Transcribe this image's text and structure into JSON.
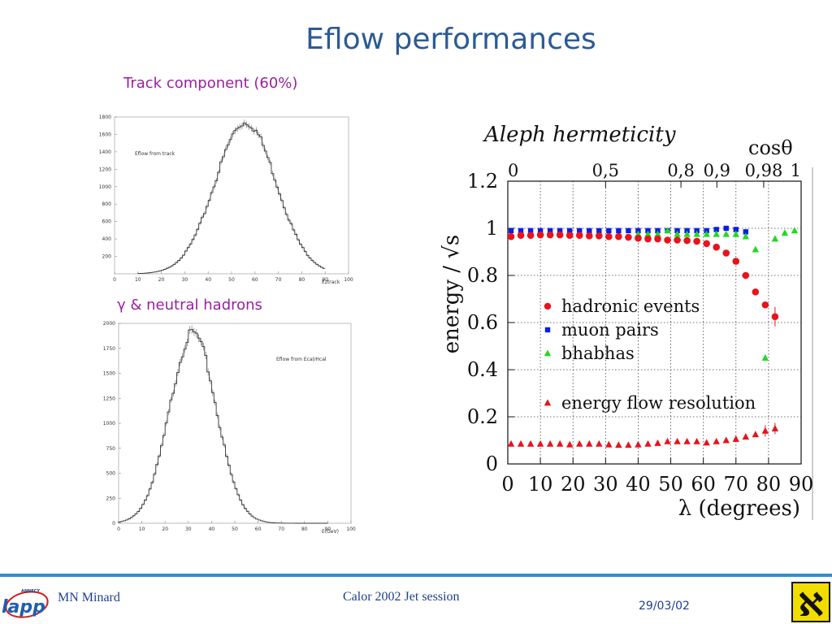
{
  "slide": {
    "title": "Eflow performances",
    "subheading_track": "Track component (60%)",
    "subheading_neutral_symbol": "γ",
    "subheading_neutral": "& neutral hadrons"
  },
  "footer": {
    "author": "MN Minard",
    "session": "Calor 2002 Jet session",
    "date": "29/03/02",
    "left_logo_text": "lapp",
    "left_logo_small": "ANNECY",
    "right_logo_glyph": "ℵ"
  },
  "colors": {
    "title": "#2c5b94",
    "subheading": "#9a1fa0",
    "footer_line": "#2f8ed0",
    "hadronic": "#e8131c",
    "muon": "#0a1ee6",
    "bhabha": "#22d822",
    "resolution": "#e8131c",
    "logo_yellow": "#f2dd00"
  },
  "chart_data": [
    {
      "type": "histogram",
      "annotation": "Eflow from track",
      "xlabel": "Eztrack",
      "xlim": [
        0,
        100
      ],
      "ylim": [
        0,
        1800
      ],
      "xticks": [
        0,
        10,
        20,
        30,
        40,
        50,
        60,
        70,
        80,
        90,
        100
      ],
      "yticks": [
        200,
        400,
        600,
        800,
        1000,
        1200,
        1400,
        1600,
        1800
      ],
      "peak_x": 56,
      "peak_value": 1740,
      "width_sigma": 13
    },
    {
      "type": "histogram",
      "annotation": "Eflow from Ecal/Hcal",
      "xlabel": "E(GeV)",
      "xlim": [
        0,
        100
      ],
      "ylim": [
        0,
        2000
      ],
      "xticks": [
        0,
        10,
        20,
        30,
        40,
        50,
        60,
        70,
        80,
        90,
        100
      ],
      "yticks": [
        0,
        250,
        500,
        750,
        1000,
        1250,
        1500,
        1750,
        2000
      ],
      "peak_x": 32,
      "peak_value": 1900,
      "width_sigma": 10
    },
    {
      "type": "scatter",
      "title": "Aleph hermeticity",
      "xlabel": "λ (degrees)",
      "ylabel": "energy / √s",
      "top_axis_label": "cosθ",
      "xlim": [
        0,
        90
      ],
      "ylim": [
        0,
        1.2
      ],
      "xticks": [
        0,
        10,
        20,
        30,
        40,
        50,
        60,
        70,
        80,
        90
      ],
      "yticks": [
        0,
        0.2,
        0.4,
        0.6,
        0.8,
        1,
        1.2
      ],
      "ytick_labels": [
        "0",
        "0.2",
        "0.4",
        "0.6",
        "0.8",
        "1",
        "1.2"
      ],
      "top_ticks": [
        {
          "label": "0",
          "value": 0
        },
        {
          "label": "0,5",
          "value": 0.5
        },
        {
          "label": "0,8",
          "value": 0.8
        },
        {
          "label": "0,9",
          "value": 0.9
        },
        {
          "label": "0,98",
          "value": 0.98
        },
        {
          "label": "1",
          "value": 1
        }
      ],
      "grid": true,
      "legend": [
        {
          "name": "hadronic events",
          "marker": "circle",
          "series": "hadronic"
        },
        {
          "name": "muon pairs",
          "marker": "square",
          "series": "muon"
        },
        {
          "name": "bhabhas",
          "marker": "triangle",
          "series": "bhabha"
        },
        {
          "name": "energy flow resolution",
          "marker": "triangle",
          "series": "resolution"
        }
      ],
      "series": {
        "hadronic": {
          "x": [
            1,
            4,
            7,
            10,
            13,
            16,
            19,
            22,
            25,
            28,
            31,
            34,
            37,
            40,
            43,
            46,
            49,
            52,
            55,
            58,
            61,
            64,
            67,
            70,
            73,
            76,
            79,
            82
          ],
          "y": [
            0.965,
            0.97,
            0.97,
            0.972,
            0.972,
            0.972,
            0.97,
            0.97,
            0.968,
            0.968,
            0.965,
            0.965,
            0.962,
            0.958,
            0.955,
            0.955,
            0.95,
            0.95,
            0.948,
            0.945,
            0.935,
            0.92,
            0.895,
            0.86,
            0.8,
            0.73,
            0.675,
            0.625
          ]
        },
        "muon": {
          "x": [
            1,
            4,
            7,
            10,
            13,
            16,
            19,
            22,
            25,
            28,
            31,
            34,
            37,
            40,
            43,
            46,
            49,
            52,
            55,
            58,
            61,
            64,
            67,
            70,
            73
          ],
          "y": [
            0.99,
            0.99,
            0.99,
            0.99,
            0.99,
            0.99,
            0.99,
            0.99,
            0.99,
            0.99,
            0.99,
            0.99,
            0.99,
            0.99,
            0.99,
            0.99,
            0.99,
            0.99,
            0.99,
            0.99,
            0.99,
            0.995,
            1.0,
            0.995,
            0.985
          ]
        },
        "bhabha": {
          "x": [
            40,
            43,
            46,
            49,
            52,
            55,
            58,
            61,
            64,
            67,
            70,
            73,
            76,
            79,
            82,
            85,
            88
          ],
          "y": [
            0.975,
            0.975,
            0.975,
            0.99,
            0.975,
            0.975,
            0.975,
            0.975,
            0.975,
            0.975,
            0.975,
            0.965,
            0.91,
            0.45,
            0.955,
            0.98,
            0.99
          ]
        },
        "resolution": {
          "x": [
            1,
            4,
            7,
            10,
            13,
            16,
            19,
            22,
            25,
            28,
            31,
            34,
            37,
            40,
            43,
            46,
            49,
            52,
            55,
            58,
            61,
            64,
            67,
            70,
            73,
            76,
            79,
            82
          ],
          "y": [
            0.085,
            0.085,
            0.085,
            0.085,
            0.085,
            0.085,
            0.082,
            0.085,
            0.085,
            0.085,
            0.082,
            0.08,
            0.08,
            0.082,
            0.085,
            0.088,
            0.095,
            0.095,
            0.095,
            0.095,
            0.09,
            0.095,
            0.1,
            0.105,
            0.115,
            0.125,
            0.14,
            0.15
          ]
        }
      }
    }
  ]
}
